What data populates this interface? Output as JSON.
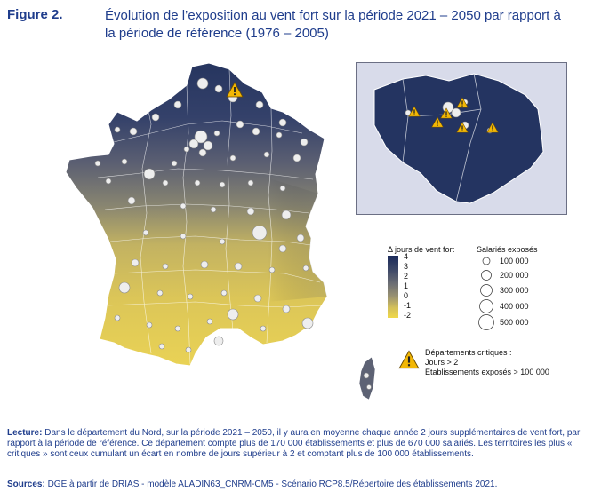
{
  "header": {
    "figure_number": "Figure 2.",
    "title": "Évolution de l’exposition au vent fort sur la période 2021 – 2050 par rapport à la période de référence (1976 – 2005)"
  },
  "legend": {
    "scale_title": "Δ jours de vent fort",
    "scale_ticks": [
      "4",
      "3",
      "2",
      "1",
      "0",
      "-1",
      "-2"
    ],
    "scale_colors": {
      "max": "#1a2a5a",
      "mid": "#6c6e74",
      "min": "#f0d84a"
    },
    "circles_title": "Salariés exposés",
    "circle_labels": [
      "100 000",
      "200 000",
      "300 000",
      "400 000",
      "500 000"
    ],
    "critical_title": "Départements critiques :",
    "critical_lines": [
      "Jours > 2",
      "Établissements exposés > 100 000"
    ]
  },
  "notes": {
    "lecture_label": "Lecture:",
    "lecture_text": " Dans le département du Nord, sur la période 2021 – 2050, il y aura en moyenne chaque année 2 jours supplémentaires de vent fort, par rapport à la période de référence. Ce département compte plus de 170 000 établissements et plus de 670 000 salariés. Les territoires les plus « critiques » sont ceux cumulant un écart en nombre de jours supérieur à 2 et comptant plus de 100 000 établissements.",
    "sources_label": "Sources:",
    "sources_text": " DGE à partir de DRIAS - modèle ALADIN63_CNRM-CM5 - Scénario RCP8.5/Répertoire des établissements 2021."
  },
  "colors": {
    "title": "#1f3d8c",
    "dark_navy": "#243461",
    "warning": "#f2b705"
  },
  "icons": [
    "warning-triangle-icon"
  ]
}
